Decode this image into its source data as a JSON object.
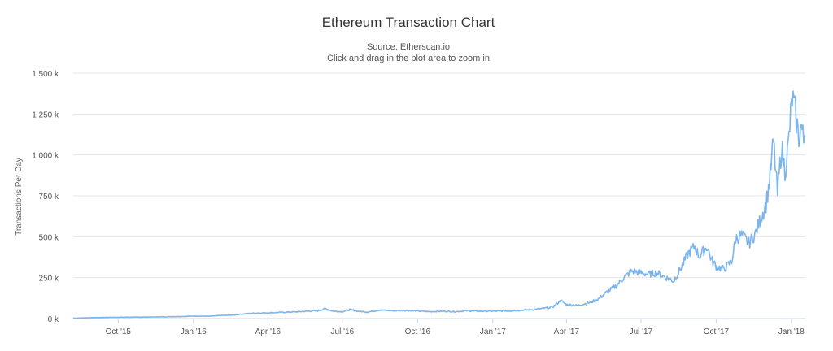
{
  "chart_data": {
    "type": "line",
    "title": "Ethereum Transaction Chart",
    "subtitle": "Source: Etherscan.io",
    "subtitle2": "Click and drag in the plot area to zoom in",
    "ylabel": "Transactions Per Day",
    "xlabel": "",
    "ylim": [
      0,
      1500000
    ],
    "yticks": [
      {
        "value": 0,
        "label": "0 k"
      },
      {
        "value": 250000,
        "label": "250 k"
      },
      {
        "value": 500000,
        "label": "500 k"
      },
      {
        "value": 750000,
        "label": "750 k"
      },
      {
        "value": 1000000,
        "label": "1 000 k"
      },
      {
        "value": 1250000,
        "label": "1 250 k"
      },
      {
        "value": 1500000,
        "label": "1 500 k"
      }
    ],
    "xlim": [
      "2015-08-07",
      "2018-01-18"
    ],
    "xticks": [
      {
        "date": "2015-10-01",
        "label": "Oct '15"
      },
      {
        "date": "2016-01-01",
        "label": "Jan '16"
      },
      {
        "date": "2016-04-01",
        "label": "Apr '16"
      },
      {
        "date": "2016-07-01",
        "label": "Jul '16"
      },
      {
        "date": "2016-10-01",
        "label": "Oct '16"
      },
      {
        "date": "2017-01-01",
        "label": "Jan '17"
      },
      {
        "date": "2017-04-01",
        "label": "Apr '17"
      },
      {
        "date": "2017-07-01",
        "label": "Jul '17"
      },
      {
        "date": "2017-10-01",
        "label": "Oct '17"
      },
      {
        "date": "2018-01-01",
        "label": "Jan '18"
      }
    ],
    "grid": true,
    "legend": "none",
    "series": [
      {
        "color": "#7cb5ec",
        "points": [
          [
            "2015-08-07",
            2000
          ],
          [
            "2015-09-01",
            6000
          ],
          [
            "2015-10-01",
            8000
          ],
          [
            "2015-11-01",
            9000
          ],
          [
            "2015-12-01",
            11000
          ],
          [
            "2015-12-20",
            13000
          ],
          [
            "2016-01-01",
            15000
          ],
          [
            "2016-01-20",
            14000
          ],
          [
            "2016-02-01",
            18000
          ],
          [
            "2016-02-20",
            22000
          ],
          [
            "2016-03-01",
            28000
          ],
          [
            "2016-03-15",
            33000
          ],
          [
            "2016-04-01",
            35000
          ],
          [
            "2016-04-20",
            38000
          ],
          [
            "2016-05-01",
            40000
          ],
          [
            "2016-05-20",
            45000
          ],
          [
            "2016-06-01",
            48000
          ],
          [
            "2016-06-10",
            60000
          ],
          [
            "2016-06-20",
            45000
          ],
          [
            "2016-07-01",
            42000
          ],
          [
            "2016-07-10",
            55000
          ],
          [
            "2016-07-20",
            45000
          ],
          [
            "2016-08-01",
            40000
          ],
          [
            "2016-08-15",
            52000
          ],
          [
            "2016-09-01",
            48000
          ],
          [
            "2016-09-15",
            50000
          ],
          [
            "2016-10-01",
            46000
          ],
          [
            "2016-10-15",
            42000
          ],
          [
            "2016-11-01",
            45000
          ],
          [
            "2016-11-15",
            42000
          ],
          [
            "2016-12-01",
            48000
          ],
          [
            "2016-12-15",
            45000
          ],
          [
            "2017-01-01",
            45000
          ],
          [
            "2017-01-20",
            47000
          ],
          [
            "2017-02-01",
            50000
          ],
          [
            "2017-02-20",
            55000
          ],
          [
            "2017-03-01",
            60000
          ],
          [
            "2017-03-15",
            70000
          ],
          [
            "2017-03-25",
            110000
          ],
          [
            "2017-04-01",
            85000
          ],
          [
            "2017-04-15",
            80000
          ],
          [
            "2017-05-01",
            100000
          ],
          [
            "2017-05-10",
            120000
          ],
          [
            "2017-05-20",
            160000
          ],
          [
            "2017-06-01",
            200000
          ],
          [
            "2017-06-10",
            250000
          ],
          [
            "2017-06-20",
            290000
          ],
          [
            "2017-07-01",
            280000
          ],
          [
            "2017-07-10",
            270000
          ],
          [
            "2017-07-20",
            280000
          ],
          [
            "2017-08-01",
            250000
          ],
          [
            "2017-08-10",
            230000
          ],
          [
            "2017-08-20",
            320000
          ],
          [
            "2017-08-28",
            400000
          ],
          [
            "2017-09-05",
            440000
          ],
          [
            "2017-09-10",
            380000
          ],
          [
            "2017-09-20",
            440000
          ],
          [
            "2017-09-25",
            360000
          ],
          [
            "2017-10-01",
            320000
          ],
          [
            "2017-10-10",
            300000
          ],
          [
            "2017-10-20",
            350000
          ],
          [
            "2017-10-25",
            490000
          ],
          [
            "2017-11-01",
            510000
          ],
          [
            "2017-11-10",
            460000
          ],
          [
            "2017-11-18",
            520000
          ],
          [
            "2017-11-25",
            620000
          ],
          [
            "2017-12-01",
            700000
          ],
          [
            "2017-12-05",
            830000
          ],
          [
            "2017-12-10",
            1080000
          ],
          [
            "2017-12-15",
            760000
          ],
          [
            "2017-12-20",
            1050000
          ],
          [
            "2017-12-24",
            900000
          ],
          [
            "2017-12-28",
            1050000
          ],
          [
            "2018-01-02",
            1350000
          ],
          [
            "2018-01-06",
            1250000
          ],
          [
            "2018-01-10",
            1100000
          ],
          [
            "2018-01-13",
            1180000
          ],
          [
            "2018-01-16",
            1080000
          ],
          [
            "2018-01-18",
            1200000
          ]
        ]
      }
    ]
  }
}
